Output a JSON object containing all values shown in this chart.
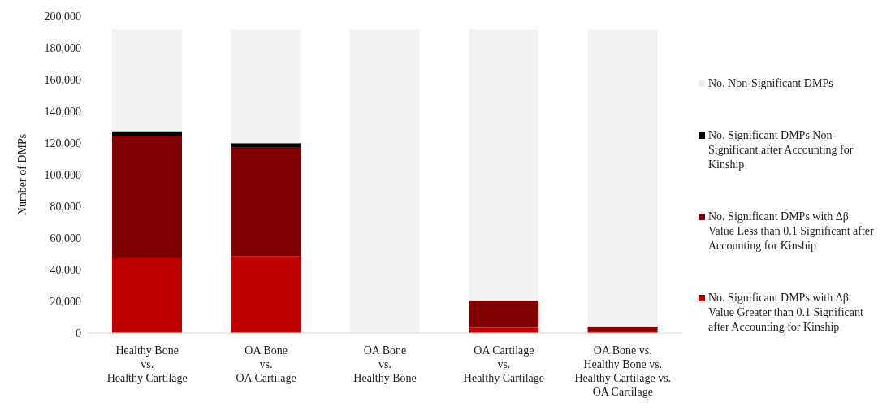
{
  "chart_data": {
    "type": "bar",
    "stacked": true,
    "ylabel": "Number of DMPs",
    "categories": [
      "Healthy Bone\nvs.\nHealthy Cartilage",
      "OA Bone\nvs.\nOA Cartilage",
      "OA Bone\nvs.\nHealthy Bone",
      "OA Cartilage\nvs.\nHealthy Cartilage",
      "OA Bone vs.\nHealthy Bone vs.\nHealthy Cartilage vs.\nOA Cartilage"
    ],
    "series": [
      {
        "name": "No. Significant DMPs with Δβ Value Greater than 0.1 Significant after Accounting for Kinship",
        "color": "#c00000",
        "values": [
          47200,
          48300,
          0,
          3500,
          1500
        ]
      },
      {
        "name": "No. Significant DMPs with Δβ Value Less than 0.1 Significant after Accounting for Kinship",
        "color": "#7f0000",
        "values": [
          77100,
          69200,
          0,
          17000,
          2700
        ]
      },
      {
        "name": "No. Significant DMPs Non-Significant after Accounting for Kinship",
        "color": "#000000",
        "values": [
          3100,
          2400,
          0,
          0,
          0
        ]
      },
      {
        "name": "No. Non-Significant DMPs",
        "color": "#f2f2f2",
        "values": [
          64200,
          71700,
          191600,
          171100,
          187400
        ]
      }
    ],
    "ylim": [
      0,
      200000
    ],
    "yticks": [
      0,
      {
        "value": 20000,
        "label": "20,000"
      },
      {
        "value": 40000,
        "label": "40,000"
      },
      {
        "value": 60000,
        "label": "60,000"
      },
      {
        "value": 80000,
        "label": "80,000"
      },
      {
        "value": 100000,
        "label": "100,000"
      },
      {
        "value": 120000,
        "label": "120,000"
      },
      {
        "value": 140000,
        "label": "140,000"
      },
      {
        "value": 160000,
        "label": "160,000"
      },
      {
        "value": 180000,
        "label": "180,000"
      },
      {
        "value": 200000,
        "label": "200,000"
      }
    ],
    "grid": false,
    "legend": "right"
  }
}
